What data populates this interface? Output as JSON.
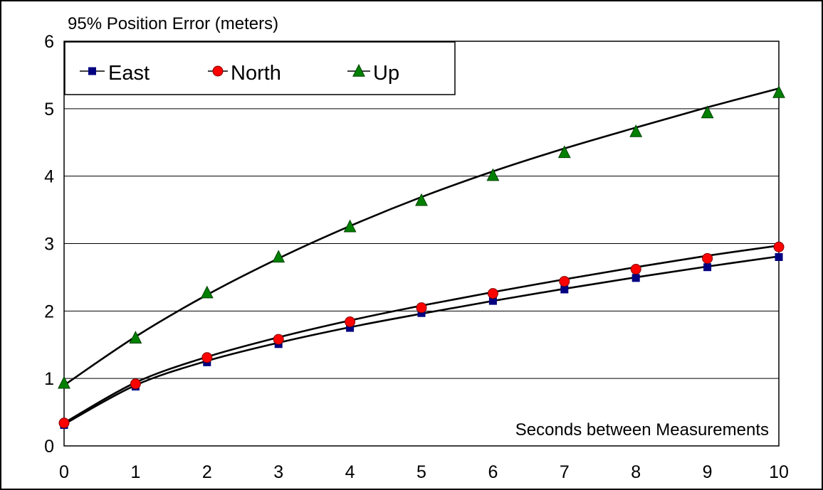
{
  "chart_data": {
    "type": "scatter",
    "title": "95% Position Error (meters)",
    "xlabel": "Seconds between Measurements",
    "ylabel": "95% Position Error (meters)",
    "xlim": [
      0,
      10
    ],
    "ylim": [
      0,
      6
    ],
    "x_ticks": [
      0,
      1,
      2,
      3,
      4,
      5,
      6,
      7,
      8,
      9,
      10
    ],
    "y_ticks": [
      0,
      1,
      2,
      3,
      4,
      5,
      6
    ],
    "grid": "horizontal",
    "legend_position": "top-left",
    "x": [
      0,
      1,
      2,
      3,
      4,
      5,
      6,
      7,
      8,
      9,
      10
    ],
    "series": [
      {
        "name": "East",
        "marker": "square",
        "color": "#000080",
        "values": [
          0.31,
          0.88,
          1.24,
          1.51,
          1.75,
          1.97,
          2.15,
          2.32,
          2.49,
          2.65,
          2.8
        ]
      },
      {
        "name": "North",
        "marker": "circle",
        "color": "#ff0000",
        "values": [
          0.34,
          0.92,
          1.31,
          1.58,
          1.84,
          2.05,
          2.26,
          2.44,
          2.62,
          2.78,
          2.95
        ]
      },
      {
        "name": "Up",
        "marker": "triangle",
        "color": "#008000",
        "values": [
          0.93,
          1.6,
          2.27,
          2.8,
          3.25,
          3.64,
          4.01,
          4.35,
          4.66,
          4.94,
          5.24
        ]
      }
    ],
    "fit_curves": [
      {
        "series": "East",
        "color": "#000000",
        "values": [
          0.32,
          0.9,
          1.26,
          1.53,
          1.76,
          1.96,
          2.15,
          2.33,
          2.5,
          2.66,
          2.81
        ]
      },
      {
        "series": "North",
        "color": "#000000",
        "values": [
          0.34,
          0.94,
          1.32,
          1.61,
          1.86,
          2.08,
          2.28,
          2.47,
          2.65,
          2.82,
          2.97
        ]
      },
      {
        "series": "Up",
        "color": "#000000",
        "values": [
          0.9,
          1.62,
          2.24,
          2.78,
          3.26,
          3.69,
          4.07,
          4.41,
          4.72,
          5.02,
          5.3
        ]
      }
    ]
  }
}
